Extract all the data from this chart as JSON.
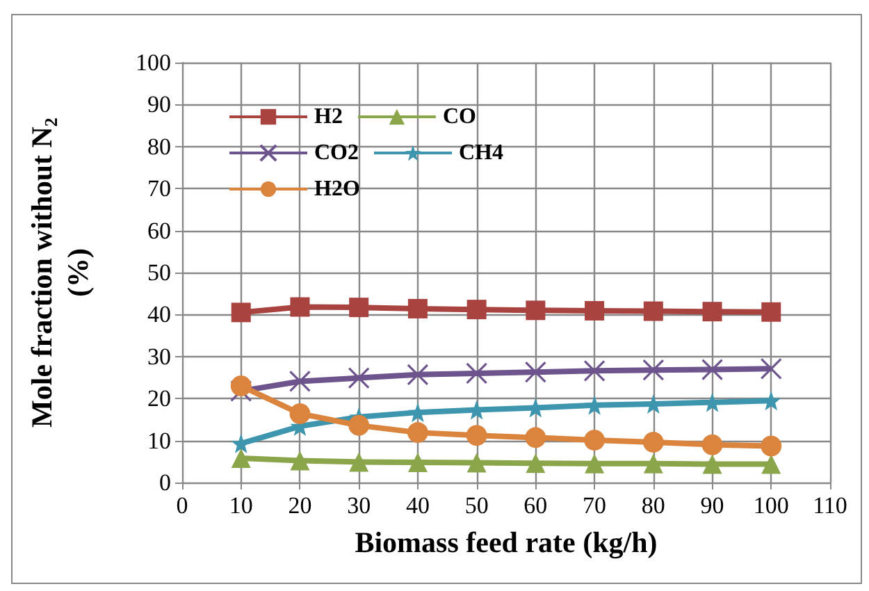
{
  "chart_data": {
    "type": "line",
    "xlabel": "Biomass feed rate (kg/h)",
    "ylabel": "Mole fraction without N$_{2}$ (%)",
    "x": [
      10,
      20,
      30,
      40,
      50,
      60,
      70,
      80,
      90,
      100
    ],
    "xlim": [
      0,
      110
    ],
    "xticks": [
      0,
      10,
      20,
      30,
      40,
      50,
      60,
      70,
      80,
      90,
      100,
      110
    ],
    "ylim": [
      0,
      100
    ],
    "yticks": [
      0,
      10,
      20,
      30,
      40,
      50,
      60,
      70,
      80,
      90,
      100
    ],
    "grid": true,
    "legend": "top left",
    "series": [
      {
        "name": "H2",
        "color": "#a84340",
        "marker": "square",
        "values": [
          40.5,
          41.8,
          41.7,
          41.4,
          41.2,
          41.0,
          40.9,
          40.8,
          40.7,
          40.6
        ]
      },
      {
        "name": "CO",
        "color": "#8aa54a",
        "marker": "triangle",
        "values": [
          5.8,
          5.2,
          4.9,
          4.8,
          4.7,
          4.6,
          4.5,
          4.5,
          4.4,
          4.4
        ]
      },
      {
        "name": "CO2",
        "color": "#6e548d",
        "marker": "cross",
        "values": [
          21.8,
          24.1,
          24.9,
          25.7,
          26.0,
          26.3,
          26.6,
          26.8,
          26.9,
          27.1
        ]
      },
      {
        "name": "CH4",
        "color": "#3d96ae",
        "marker": "star",
        "values": [
          9.3,
          13.4,
          15.6,
          16.7,
          17.3,
          17.8,
          18.4,
          18.7,
          19.1,
          19.5
        ]
      },
      {
        "name": "H2O",
        "color": "#db843d",
        "marker": "circle",
        "values": [
          23.0,
          16.4,
          13.6,
          11.9,
          11.2,
          10.7,
          10.1,
          9.6,
          9.0,
          8.7
        ]
      }
    ]
  }
}
